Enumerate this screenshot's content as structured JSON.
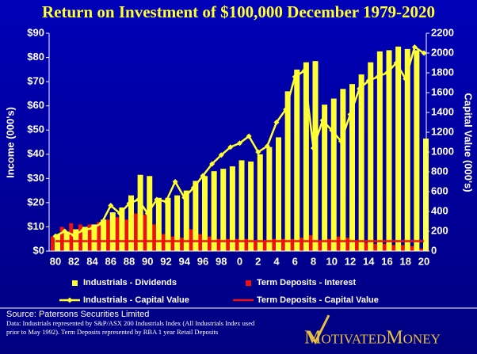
{
  "chart_data": {
    "type": "bar-line",
    "title": "Return on Investment  of  $100,000 December 1979-2020",
    "ylabel": "Income (000's)",
    "y2label": "Capital Value (000's)",
    "categories": [
      "80",
      null,
      "82",
      null,
      "84",
      null,
      "86",
      null,
      "88",
      null,
      "90",
      null,
      "92",
      null,
      "94",
      null,
      "96",
      null,
      "98",
      null,
      "0",
      null,
      "2",
      null,
      "4",
      null,
      "6",
      null,
      "8",
      null,
      "10",
      null,
      "12",
      null,
      "14",
      null,
      "16",
      null,
      "18",
      null,
      "20"
    ],
    "ylim": [
      0,
      90
    ],
    "yticks": [
      {
        "value": 0,
        "label": "$0"
      },
      {
        "value": 10,
        "label": "$10"
      },
      {
        "value": 20,
        "label": "$20"
      },
      {
        "value": 30,
        "label": "$30"
      },
      {
        "value": 40,
        "label": "$40"
      },
      {
        "value": 50,
        "label": "$50"
      },
      {
        "value": 60,
        "label": "$60"
      },
      {
        "value": 70,
        "label": "$70"
      },
      {
        "value": 80,
        "label": "$80"
      },
      {
        "value": 90,
        "label": "$90"
      }
    ],
    "y2lim": [
      0,
      2200
    ],
    "y2ticks": [
      0,
      200,
      400,
      600,
      800,
      1000,
      1200,
      1400,
      1600,
      1800,
      2000,
      2200
    ],
    "series": [
      {
        "name": "Industrials - Dividends",
        "type": "bar",
        "color": "#ffff33",
        "values": [
          7,
          8,
          9,
          10,
          11,
          13,
          16,
          18,
          23,
          31.5,
          31,
          22,
          22,
          23,
          25,
          29,
          31,
          33,
          34,
          35,
          37.5,
          37,
          40,
          43,
          47,
          66,
          75,
          78,
          78.5,
          60.5,
          63,
          67,
          69,
          73,
          78,
          82.5,
          83,
          84.5,
          83.5,
          83,
          46.5
        ]
      },
      {
        "name": "Term Deposits - Interest",
        "type": "bar",
        "color": "#ee1111",
        "values": [
          6,
          10,
          11.5,
          11,
          11,
          12,
          13,
          14,
          13,
          15.5,
          15,
          11,
          7,
          6,
          5.5,
          9,
          7,
          6,
          5,
          5,
          5,
          5,
          4.5,
          4.5,
          5,
          5,
          5,
          5.5,
          6.5,
          4,
          5,
          6,
          5.5,
          4,
          3.5,
          3,
          3,
          2.5,
          2.5,
          2,
          1
        ]
      },
      {
        "name": "Industrials - Capital Value",
        "type": "line",
        "axis": "y2",
        "color": "#ffff33",
        "values": [
          150,
          200,
          160,
          210,
          230,
          280,
          460,
          380,
          480,
          520,
          380,
          520,
          500,
          700,
          540,
          640,
          760,
          880,
          970,
          1050,
          1090,
          1160,
          1000,
          1060,
          1300,
          1430,
          1760,
          1820,
          1040,
          1320,
          1220,
          1110,
          1380,
          1640,
          1720,
          1760,
          1800,
          1900,
          1740,
          2060,
          2000
        ]
      },
      {
        "name": "Term Deposits - Capital Value",
        "type": "line",
        "axis": "y2",
        "color": "#ee1111",
        "values": [
          100,
          100,
          100,
          100,
          100,
          100,
          100,
          100,
          100,
          100,
          100,
          100,
          100,
          100,
          100,
          100,
          100,
          100,
          100,
          100,
          100,
          100,
          100,
          100,
          100,
          100,
          100,
          100,
          100,
          100,
          100,
          100,
          100,
          100,
          100,
          100,
          100,
          100,
          100,
          100,
          100
        ]
      }
    ]
  },
  "source": "Source: Patersons Securities Limited",
  "note": "Data: Industrials represented by S&P/ASX 200 Industrials Index (All Industrials Index used prior to May 1992).  Term Deposits represented by RBA 1 year Retail Deposits",
  "logo": "MotivatedMoney"
}
